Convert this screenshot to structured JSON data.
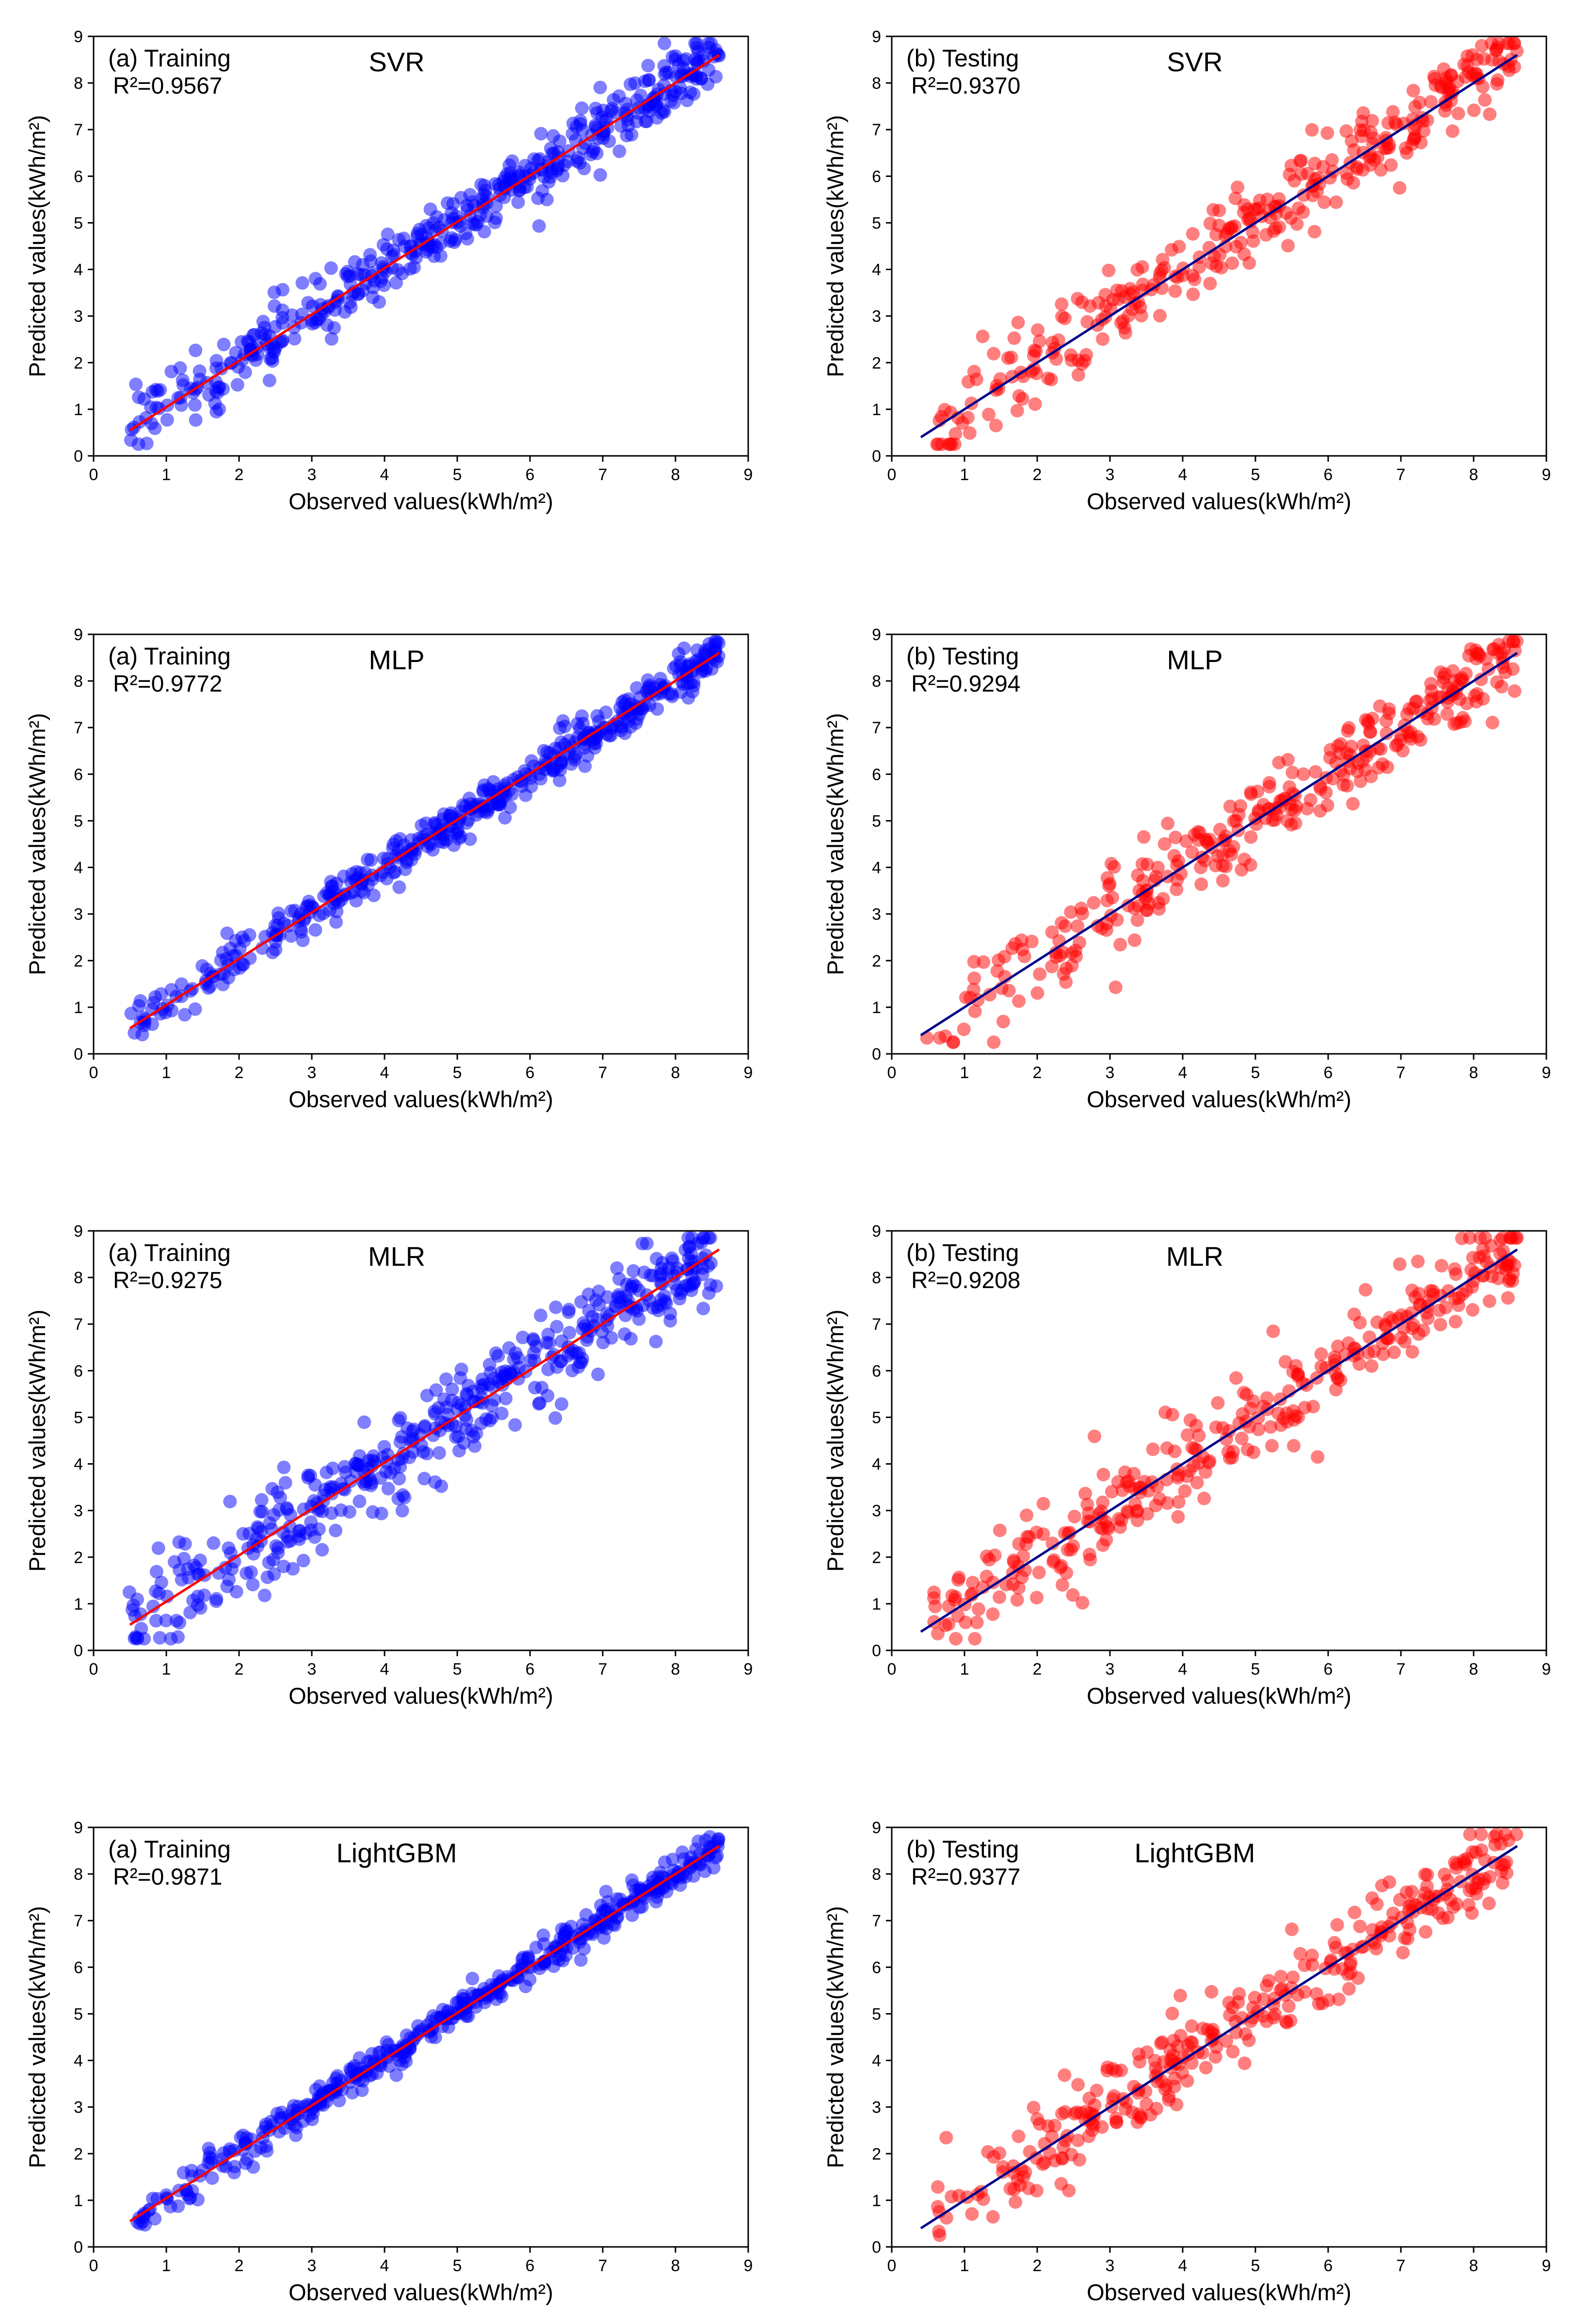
{
  "figure": {
    "colors": {
      "training_points": "#0000ff",
      "training_fit": "#ff0000",
      "testing_points": "#ff0000",
      "testing_fit": "#00008b",
      "axes": "#000000",
      "background": "#ffffff"
    }
  },
  "chart_data": [
    {
      "type": "scatter",
      "model": "SVR",
      "panel": "(a) Training",
      "r2": "R²=0.9567",
      "xlabel": "Observed values(kWh/m²)",
      "ylabel": "Predicted values(kWh/m²)",
      "xlim": [
        0,
        9
      ],
      "ylim": [
        0,
        9
      ],
      "xticks": [
        "0",
        "1",
        "2",
        "3",
        "4",
        "5",
        "6",
        "7",
        "8",
        "9"
      ],
      "yticks": [
        "0",
        "1",
        "2",
        "3",
        "4",
        "5",
        "6",
        "7",
        "8",
        "9"
      ],
      "fit_line": {
        "x": [
          0.5,
          8.6
        ],
        "y": [
          0.55,
          8.6
        ]
      },
      "point_color": "#0000ff",
      "line_color": "#ff0000",
      "approx_n_points": 460,
      "spread": 0.32,
      "seed": 11
    },
    {
      "type": "scatter",
      "model": "SVR",
      "panel": "(b) Testing",
      "r2": "R²=0.9370",
      "xlabel": "Observed values(kWh/m²)",
      "ylabel": "Predicted values(kWh/m²)",
      "xlim": [
        0,
        9
      ],
      "ylim": [
        0,
        9
      ],
      "xticks": [
        "0",
        "1",
        "2",
        "3",
        "4",
        "5",
        "6",
        "7",
        "8",
        "9"
      ],
      "yticks": [
        "0",
        "1",
        "2",
        "3",
        "4",
        "5",
        "6",
        "7",
        "8",
        "9"
      ],
      "fit_line": {
        "x": [
          0.4,
          8.6
        ],
        "y": [
          0.4,
          8.6
        ]
      },
      "point_color": "#ff0000",
      "line_color": "#00008b",
      "approx_n_points": 320,
      "spread": 0.42,
      "seed": 23
    },
    {
      "type": "scatter",
      "model": "MLP",
      "panel": "(a) Training",
      "r2": "R²=0.9772",
      "xlabel": "Observed values(kWh/m²)",
      "ylabel": "Predicted values(kWh/m²)",
      "xlim": [
        0,
        9
      ],
      "ylim": [
        0,
        9
      ],
      "xticks": [
        "0",
        "1",
        "2",
        "3",
        "4",
        "5",
        "6",
        "7",
        "8",
        "9"
      ],
      "yticks": [
        "0",
        "1",
        "2",
        "3",
        "4",
        "5",
        "6",
        "7",
        "8",
        "9"
      ],
      "fit_line": {
        "x": [
          0.5,
          8.6
        ],
        "y": [
          0.55,
          8.6
        ]
      },
      "point_color": "#0000ff",
      "line_color": "#ff0000",
      "approx_n_points": 460,
      "spread": 0.22,
      "seed": 37
    },
    {
      "type": "scatter",
      "model": "MLP",
      "panel": "(b) Testing",
      "r2": "R²=0.9294",
      "xlabel": "Observed values(kWh/m²)",
      "ylabel": "Predicted values(kWh/m²)",
      "xlim": [
        0,
        9
      ],
      "ylim": [
        0,
        9
      ],
      "xticks": [
        "0",
        "1",
        "2",
        "3",
        "4",
        "5",
        "6",
        "7",
        "8",
        "9"
      ],
      "yticks": [
        "0",
        "1",
        "2",
        "3",
        "4",
        "5",
        "6",
        "7",
        "8",
        "9"
      ],
      "fit_line": {
        "x": [
          0.4,
          8.6
        ],
        "y": [
          0.4,
          8.6
        ]
      },
      "point_color": "#ff0000",
      "line_color": "#00008b",
      "approx_n_points": 320,
      "spread": 0.45,
      "seed": 41
    },
    {
      "type": "scatter",
      "model": "MLR",
      "panel": "(a) Training",
      "r2": "R²=0.9275",
      "xlabel": "Observed values(kWh/m²)",
      "ylabel": "Predicted values(kWh/m²)",
      "xlim": [
        0,
        9
      ],
      "ylim": [
        0,
        9
      ],
      "xticks": [
        "0",
        "1",
        "2",
        "3",
        "4",
        "5",
        "6",
        "7",
        "8",
        "9"
      ],
      "yticks": [
        "0",
        "1",
        "2",
        "3",
        "4",
        "5",
        "6",
        "7",
        "8",
        "9"
      ],
      "fit_line": {
        "x": [
          0.5,
          8.6
        ],
        "y": [
          0.55,
          8.6
        ]
      },
      "point_color": "#0000ff",
      "line_color": "#ff0000",
      "approx_n_points": 460,
      "spread": 0.48,
      "seed": 53
    },
    {
      "type": "scatter",
      "model": "MLR",
      "panel": "(b) Testing",
      "r2": "R²=0.9208",
      "xlabel": "Observed values(kWh/m²)",
      "ylabel": "Predicted values(kWh/m²)",
      "xlim": [
        0,
        9
      ],
      "ylim": [
        0,
        9
      ],
      "xticks": [
        "0",
        "1",
        "2",
        "3",
        "4",
        "5",
        "6",
        "7",
        "8",
        "9"
      ],
      "yticks": [
        "0",
        "1",
        "2",
        "3",
        "4",
        "5",
        "6",
        "7",
        "8",
        "9"
      ],
      "fit_line": {
        "x": [
          0.4,
          8.6
        ],
        "y": [
          0.4,
          8.6
        ]
      },
      "point_color": "#ff0000",
      "line_color": "#00008b",
      "approx_n_points": 320,
      "spread": 0.48,
      "seed": 67
    },
    {
      "type": "scatter",
      "model": "LightGBM",
      "panel": "(a) Training",
      "r2": "R²=0.9871",
      "xlabel": "Observed values(kWh/m²)",
      "ylabel": "Predicted values(kWh/m²)",
      "xlim": [
        0,
        9
      ],
      "ylim": [
        0,
        9
      ],
      "xticks": [
        "0",
        "1",
        "2",
        "3",
        "4",
        "5",
        "6",
        "7",
        "8",
        "9"
      ],
      "yticks": [
        "0",
        "1",
        "2",
        "3",
        "4",
        "5",
        "6",
        "7",
        "8",
        "9"
      ],
      "fit_line": {
        "x": [
          0.5,
          8.6
        ],
        "y": [
          0.55,
          8.6
        ]
      },
      "point_color": "#0000ff",
      "line_color": "#ff0000",
      "approx_n_points": 460,
      "spread": 0.18,
      "seed": 79
    },
    {
      "type": "scatter",
      "model": "LightGBM",
      "panel": "(b) Testing",
      "r2": "R²=0.9377",
      "xlabel": "Observed values(kWh/m²)",
      "ylabel": "Predicted values(kWh/m²)",
      "xlim": [
        0,
        9
      ],
      "ylim": [
        0,
        9
      ],
      "xticks": [
        "0",
        "1",
        "2",
        "3",
        "4",
        "5",
        "6",
        "7",
        "8",
        "9"
      ],
      "yticks": [
        "0",
        "1",
        "2",
        "3",
        "4",
        "5",
        "6",
        "7",
        "8",
        "9"
      ],
      "fit_line": {
        "x": [
          0.4,
          8.6
        ],
        "y": [
          0.4,
          8.6
        ]
      },
      "point_color": "#ff0000",
      "line_color": "#00008b",
      "approx_n_points": 320,
      "spread": 0.42,
      "seed": 97
    }
  ]
}
